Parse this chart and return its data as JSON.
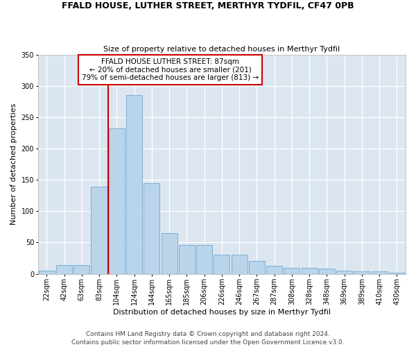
{
  "title1": "FFALD HOUSE, LUTHER STREET, MERTHYR TYDFIL, CF47 0PB",
  "title2": "Size of property relative to detached houses in Merthyr Tydfil",
  "xlabel": "Distribution of detached houses by size in Merthyr Tydfil",
  "ylabel": "Number of detached properties",
  "footnote": "Contains HM Land Registry data © Crown copyright and database right 2024.\nContains public sector information licensed under the Open Government Licence v3.0.",
  "annotation_title": "FFALD HOUSE LUTHER STREET: 87sqm",
  "annotation_line1": "← 20% of detached houses are smaller (201)",
  "annotation_line2": "79% of semi-detached houses are larger (813) →",
  "bar_color": "#bad4ea",
  "bar_edge_color": "#6fa8d0",
  "vline_color": "#cc0000",
  "background_color": "#dce6f1",
  "fig_bg": "#ffffff",
  "categories": [
    "22sqm",
    "42sqm",
    "63sqm",
    "83sqm",
    "104sqm",
    "124sqm",
    "144sqm",
    "165sqm",
    "185sqm",
    "206sqm",
    "226sqm",
    "246sqm",
    "267sqm",
    "287sqm",
    "308sqm",
    "328sqm",
    "348sqm",
    "369sqm",
    "389sqm",
    "410sqm",
    "430sqm"
  ],
  "values": [
    5,
    14,
    14,
    139,
    232,
    286,
    145,
    65,
    46,
    46,
    30,
    30,
    20,
    13,
    10,
    10,
    8,
    5,
    4,
    4,
    2
  ],
  "ylim": [
    0,
    350
  ],
  "yticks": [
    0,
    50,
    100,
    150,
    200,
    250,
    300,
    350
  ],
  "vline_x_index": 3.5,
  "title1_fontsize": 9,
  "title2_fontsize": 8,
  "ylabel_fontsize": 8,
  "xlabel_fontsize": 8,
  "tick_fontsize": 7,
  "annot_fontsize": 7.5,
  "footnote_fontsize": 6.5
}
